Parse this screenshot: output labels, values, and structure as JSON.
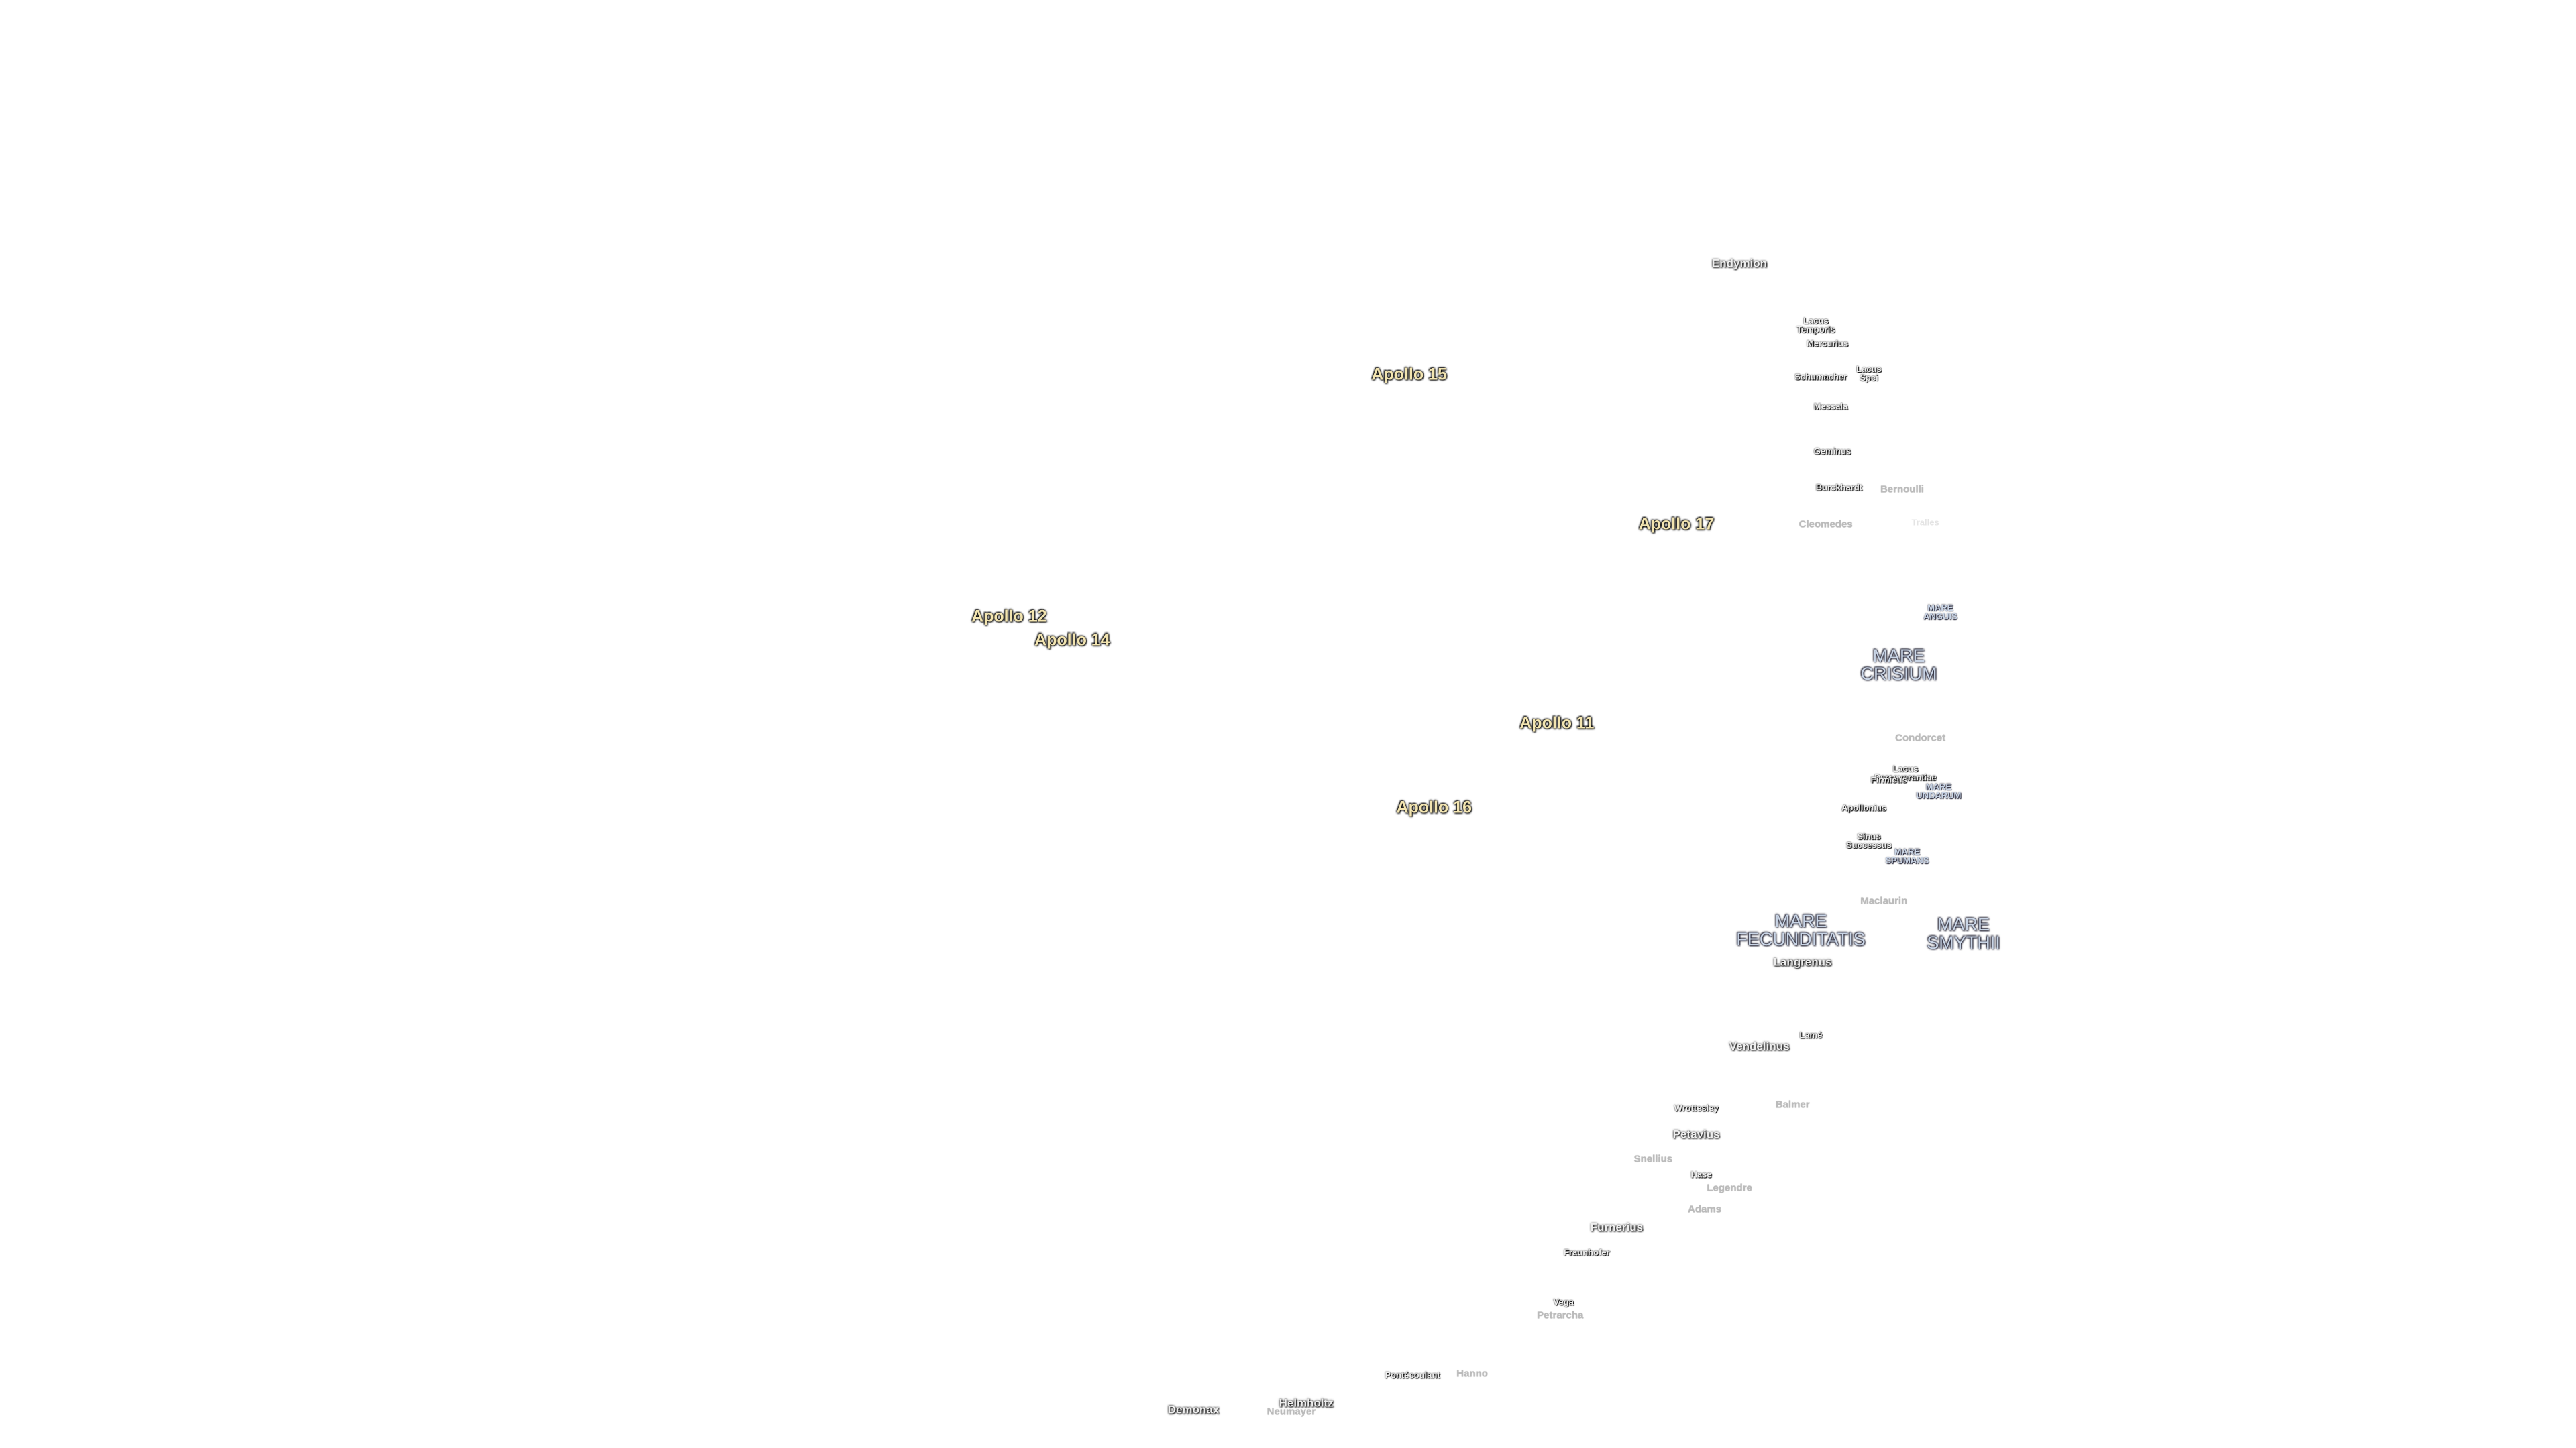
{
  "missions": [
    "Apollo 15",
    "Apollo 17",
    "Apollo 12",
    "Apollo 14",
    "Apollo 11",
    "Apollo 16"
  ],
  "features": [
    "Endymion",
    "Lacus\nTemporis",
    "Mercurius",
    "Schumacher",
    "Lacus\nSpei",
    "Messala",
    "Geminus",
    "Burckhardt",
    "Bernoulli",
    "Cleomedes",
    "Tralles",
    "MARE\nANGUIS",
    "MARE\nCRISIUM",
    "Condorcet",
    "Lacus\nPerseverantiae",
    "Firmicus",
    "MARE\nUNDARUM",
    "Apollonius",
    "Sinus\nSuccessus",
    "MARE\nSPUMANS",
    "Maclaurin",
    "MARE\nFECUNDITATIS",
    "MARE\nSMYTHII",
    "Langrenus",
    "Lamé",
    "Vendelinus",
    "Wrottesley",
    "Balmer",
    "Petavius",
    "Snellius",
    "Hase",
    "Legendre",
    "Adams",
    "Furnerius",
    "Fraunhofer",
    "Vega",
    "Petrarcha",
    "Pontécoulant",
    "Hanno",
    "Helmholtz",
    "Neumayer",
    "Demonax"
  ]
}
